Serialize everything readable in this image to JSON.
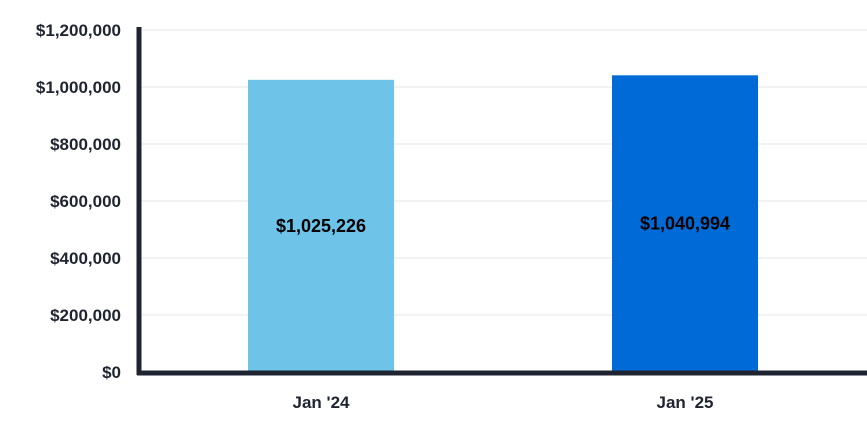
{
  "chart_data": {
    "type": "bar",
    "categories": [
      "Jan '24",
      "Jan '25"
    ],
    "values": [
      1025226,
      1040994
    ],
    "data_labels": [
      "$1,025,226",
      "$1,040,994"
    ],
    "bar_colors": [
      "#6ec3e8",
      "#006bd6"
    ],
    "ylim": [
      0,
      1200000
    ],
    "yticks": [
      0,
      200000,
      400000,
      600000,
      800000,
      1000000,
      1200000
    ],
    "ytick_labels": [
      "$0",
      "$200,000",
      "$400,000",
      "$600,000",
      "$800,000",
      "$1,000,000",
      "$1,200,000"
    ],
    "grid": true,
    "grid_color": "#e3e5e8",
    "axis_color": "#1f2430",
    "title": "",
    "xlabel": "",
    "ylabel": ""
  }
}
